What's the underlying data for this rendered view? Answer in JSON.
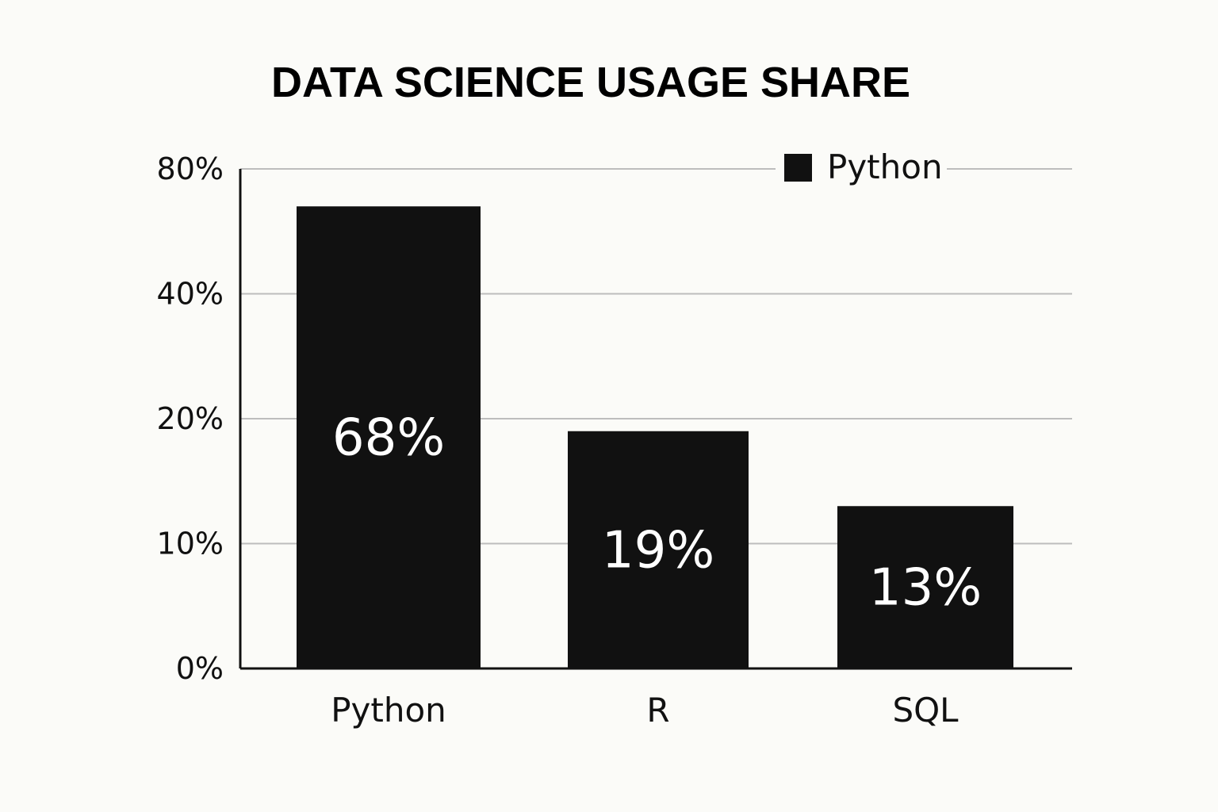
{
  "colors": {
    "background": "#fbfbf8",
    "bar": "#111111",
    "grid": "#bdbdbd",
    "axis": "#111111",
    "text": "#111111",
    "bar_label": "#ffffff"
  },
  "chart_data": {
    "type": "bar",
    "title": "DATA SCIENCE USAGE SHARE",
    "categories": [
      "Python",
      "R",
      "SQL"
    ],
    "values": [
      68,
      19,
      13
    ],
    "value_labels": [
      "68%",
      "19%",
      "13%"
    ],
    "xlabel": "",
    "ylabel": "",
    "y_ticks": [
      {
        "value": 0,
        "label": "0%"
      },
      {
        "value": 10,
        "label": "10%"
      },
      {
        "value": 20,
        "label": "20%"
      },
      {
        "value": 40,
        "label": "40%"
      },
      {
        "value": 80,
        "label": "80%"
      }
    ],
    "y_scale": "non-uniform (ticks evenly spaced)",
    "ylim": [
      0,
      80
    ],
    "grid": true,
    "legend": {
      "position": "top-right",
      "entries": [
        {
          "name": "Python",
          "color": "#111111"
        }
      ]
    }
  }
}
